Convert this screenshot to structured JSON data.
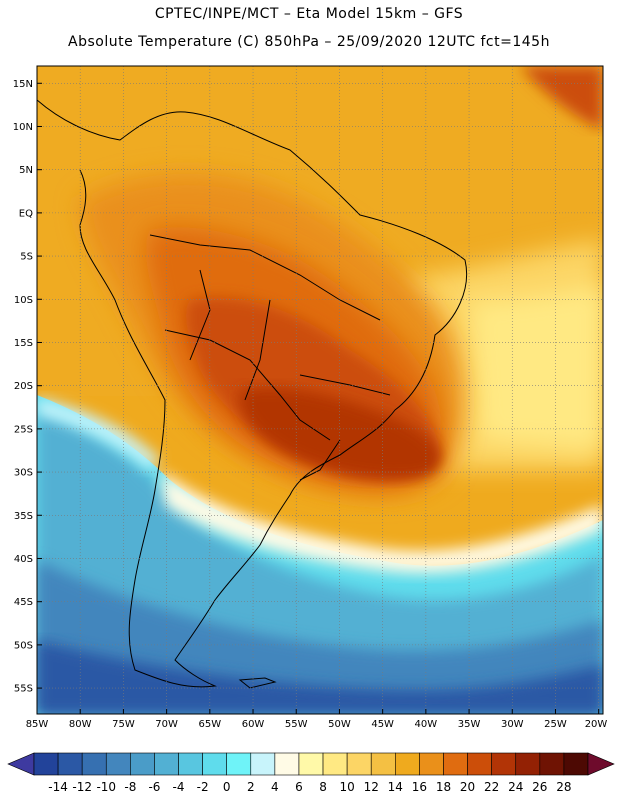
{
  "header": {
    "line1": "CPTEC/INPE/MCT –  Eta Model 15km – GFS",
    "line2": "Absolute Temperature (C) 850hPa – 25/09/2020 12UTC fct=145h"
  },
  "map": {
    "lat_labels": [
      "15N",
      "10N",
      "5N",
      "EQ",
      "5S",
      "10S",
      "15S",
      "20S",
      "25S",
      "30S",
      "35S",
      "40S",
      "45S",
      "50S",
      "55S"
    ],
    "lat_values": [
      15,
      10,
      5,
      0,
      -5,
      -10,
      -15,
      -20,
      -25,
      -30,
      -35,
      -40,
      -45,
      -50,
      -55
    ],
    "lon_labels": [
      "85W",
      "80W",
      "75W",
      "70W",
      "65W",
      "60W",
      "55W",
      "50W",
      "45W",
      "40W",
      "35W",
      "30W",
      "25W",
      "20W"
    ],
    "lon_values": [
      -85,
      -80,
      -75,
      -70,
      -65,
      -60,
      -55,
      -50,
      -45,
      -40,
      -35,
      -30,
      -25,
      -20
    ],
    "lat_range": [
      -58,
      17
    ],
    "lon_range": [
      -85,
      -19.5
    ]
  },
  "colorbar": {
    "labels": [
      "-14",
      "-12",
      "-10",
      "-8",
      "-6",
      "-4",
      "-2",
      "0",
      "2",
      "4",
      "6",
      "8",
      "10",
      "12",
      "14",
      "16",
      "18",
      "20",
      "22",
      "24",
      "26",
      "28"
    ],
    "colors": [
      "#22439a",
      "#2b58a5",
      "#3670b1",
      "#4386bd",
      "#4a9cc8",
      "#52b0d3",
      "#58c6e0",
      "#5fdcec",
      "#6ff3f8",
      "#c8f4fb",
      "#fffbe6",
      "#fff9a8",
      "#ffe983",
      "#fcd565",
      "#f4c043",
      "#efaa1e",
      "#ea901a",
      "#e06c10",
      "#cc4e09",
      "#b23406",
      "#932104",
      "#6f1303",
      "#4d0903"
    ],
    "under_color": "#3e3aa0",
    "over_color": "#6e0b2c"
  }
}
